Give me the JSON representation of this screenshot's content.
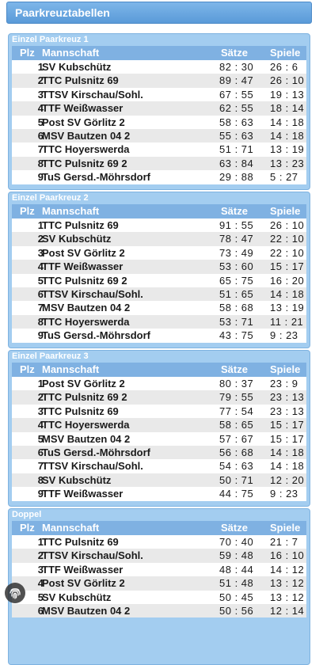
{
  "page": {
    "title": "Paarkreuztabellen"
  },
  "columns": {
    "plz": "Plz",
    "team": "Mannschaft",
    "saetze": "Sätze",
    "spiele": "Spiele"
  },
  "sections": [
    {
      "title": "Einzel Paarkreuz 1",
      "rows": [
        {
          "plz": "1",
          "team": "SV Kubschütz",
          "saetze": "82 : 30",
          "spiele": "26 : 6"
        },
        {
          "plz": "2",
          "team": "TTC Pulsnitz 69",
          "saetze": "89 : 47",
          "spiele": "26 : 10"
        },
        {
          "plz": "3",
          "team": "TTSV Kirschau/Sohl.",
          "saetze": "67 : 55",
          "spiele": "19 : 13"
        },
        {
          "plz": "4",
          "team": "TTF Weißwasser",
          "saetze": "62 : 55",
          "spiele": "18 : 14"
        },
        {
          "plz": "5",
          "team": "Post SV Görlitz 2",
          "saetze": "58 : 63",
          "spiele": "14 : 18"
        },
        {
          "plz": "6",
          "team": "MSV Bautzen 04 2",
          "saetze": "55 : 63",
          "spiele": "14 : 18"
        },
        {
          "plz": "7",
          "team": "TTC Hoyerswerda",
          "saetze": "51 : 71",
          "spiele": "13 : 19"
        },
        {
          "plz": "8",
          "team": "TTC Pulsnitz 69 2",
          "saetze": "63 : 84",
          "spiele": "13 : 23"
        },
        {
          "plz": "9",
          "team": "TuS Gersd.-Möhrsdorf",
          "saetze": "29 : 88",
          "spiele": "5 : 27"
        }
      ]
    },
    {
      "title": "Einzel Paarkreuz 2",
      "rows": [
        {
          "plz": "1",
          "team": "TTC Pulsnitz 69",
          "saetze": "91 : 55",
          "spiele": "26 : 10"
        },
        {
          "plz": "2",
          "team": "SV Kubschütz",
          "saetze": "78 : 47",
          "spiele": "22 : 10"
        },
        {
          "plz": "3",
          "team": "Post SV Görlitz 2",
          "saetze": "73 : 49",
          "spiele": "22 : 10"
        },
        {
          "plz": "4",
          "team": "TTF Weißwasser",
          "saetze": "53 : 60",
          "spiele": "15 : 17"
        },
        {
          "plz": "5",
          "team": "TTC Pulsnitz 69 2",
          "saetze": "65 : 75",
          "spiele": "16 : 20"
        },
        {
          "plz": "6",
          "team": "TTSV Kirschau/Sohl.",
          "saetze": "51 : 65",
          "spiele": "14 : 18"
        },
        {
          "plz": "7",
          "team": "MSV Bautzen 04 2",
          "saetze": "58 : 68",
          "spiele": "13 : 19"
        },
        {
          "plz": "8",
          "team": "TTC Hoyerswerda",
          "saetze": "53 : 71",
          "spiele": "11 : 21"
        },
        {
          "plz": "9",
          "team": "TuS Gersd.-Möhrsdorf",
          "saetze": "43 : 75",
          "spiele": "9 : 23"
        }
      ]
    },
    {
      "title": "Einzel Paarkreuz 3",
      "rows": [
        {
          "plz": "1",
          "team": "Post SV Görlitz 2",
          "saetze": "80 : 37",
          "spiele": "23 : 9"
        },
        {
          "plz": "2",
          "team": "TTC Pulsnitz 69 2",
          "saetze": "79 : 55",
          "spiele": "23 : 13"
        },
        {
          "plz": "3",
          "team": "TTC Pulsnitz 69",
          "saetze": "77 : 54",
          "spiele": "23 : 13"
        },
        {
          "plz": "4",
          "team": "TTC Hoyerswerda",
          "saetze": "58 : 65",
          "spiele": "15 : 17"
        },
        {
          "plz": "5",
          "team": "MSV Bautzen 04 2",
          "saetze": "57 : 67",
          "spiele": "15 : 17"
        },
        {
          "plz": "6",
          "team": "TuS Gersd.-Möhrsdorf",
          "saetze": "56 : 68",
          "spiele": "14 : 18"
        },
        {
          "plz": "7",
          "team": "TTSV Kirschau/Sohl.",
          "saetze": "54 : 63",
          "spiele": "14 : 18"
        },
        {
          "plz": "8",
          "team": "SV Kubschütz",
          "saetze": "50 : 71",
          "spiele": "12 : 20"
        },
        {
          "plz": "9",
          "team": "TTF Weißwasser",
          "saetze": "44 : 75",
          "spiele": "9 : 23"
        }
      ]
    },
    {
      "title": "Doppel",
      "rows": [
        {
          "plz": "1",
          "team": "TTC Pulsnitz 69",
          "saetze": "70 : 40",
          "spiele": "21 : 7"
        },
        {
          "plz": "2",
          "team": "TTSV Kirschau/Sohl.",
          "saetze": "59 : 48",
          "spiele": "16 : 10"
        },
        {
          "plz": "3",
          "team": "TTF Weißwasser",
          "saetze": "48 : 44",
          "spiele": "14 : 12"
        },
        {
          "plz": "4",
          "team": "Post SV Görlitz 2",
          "saetze": "51 : 48",
          "spiele": "13 : 12"
        },
        {
          "plz": "5",
          "team": "SV Kubschütz",
          "saetze": "50 : 45",
          "spiele": "13 : 12"
        },
        {
          "plz": "6",
          "team": "MSV Bautzen 04 2",
          "saetze": "50 : 56",
          "spiele": "12 : 14"
        }
      ]
    }
  ],
  "icons": {
    "fab": "fingerprint-icon"
  }
}
